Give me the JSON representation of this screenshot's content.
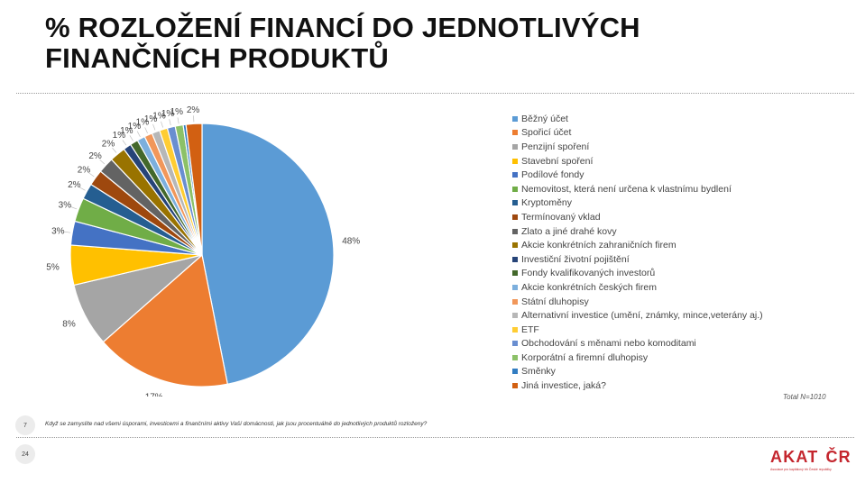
{
  "slide": {
    "title_line1": "% ROZLOŽENÍ FINANCÍ DO JEDNOTLIVÝCH",
    "title_line2": "FINANČNÍCH PRODUKTŮ",
    "question_number": "7",
    "question_text": "Když se zamyslíte nad všemi úsporami, investicemi a finančními aktivy Vaší domácnosti, jak jsou procentuálně do jednotlivých produktů rozloženy?",
    "page_number": "24",
    "total_note": "Total N=1010",
    "logo_left": "AKAT",
    "logo_right": "ČR",
    "logo_sub": "Asociace pro kapitálový trh České republiky"
  },
  "chart_data": {
    "type": "pie",
    "title": "",
    "value_suffix": "%",
    "legend_position": "right",
    "slices": [
      {
        "label": "Běžný účet",
        "value": 48,
        "color": "#5b9bd5"
      },
      {
        "label": "Spořicí účet",
        "value": 17,
        "color": "#ed7d31"
      },
      {
        "label": "Penzijní spoření",
        "value": 8,
        "color": "#a5a5a5"
      },
      {
        "label": "Stavební spoření",
        "value": 5,
        "color": "#ffc000"
      },
      {
        "label": "Podílové fondy",
        "value": 3,
        "color": "#4472c4"
      },
      {
        "label": "Nemovitost, která není určena k vlastnímu bydlení",
        "value": 3,
        "color": "#70ad47"
      },
      {
        "label": "Kryptoměny",
        "value": 2,
        "color": "#255e91"
      },
      {
        "label": "Termínovaný vklad",
        "value": 2,
        "color": "#9e480e"
      },
      {
        "label": "Zlato a jiné drahé kovy",
        "value": 2,
        "color": "#636363"
      },
      {
        "label": "Akcie konkrétních zahraničních firem",
        "value": 2,
        "color": "#997300"
      },
      {
        "label": "Investiční životní pojištění",
        "value": 1,
        "color": "#264478"
      },
      {
        "label": "Fondy kvalifikovaných investorů",
        "value": 1,
        "color": "#43682b"
      },
      {
        "label": "Akcie konkrétních českých firem",
        "value": 1,
        "color": "#7cafdd"
      },
      {
        "label": "Státní dluhopisy",
        "value": 1,
        "color": "#f1975a"
      },
      {
        "label": "Alternativní investice (umění, známky, mince,veterány aj.)",
        "value": 1,
        "color": "#b7b7b7"
      },
      {
        "label": "ETF",
        "value": 1,
        "color": "#ffcd33"
      },
      {
        "label": "Obchodování s měnami nebo komoditami",
        "value": 1,
        "color": "#698ed0"
      },
      {
        "label": "Korporátní a firemní dluhopisy",
        "value": 1,
        "color": "#8cc168"
      },
      {
        "label": "Směnky",
        "value": 0,
        "color": "#327dc2"
      },
      {
        "label": "Jiná investice, jaká?",
        "value": 2,
        "color": "#d26012"
      }
    ]
  }
}
